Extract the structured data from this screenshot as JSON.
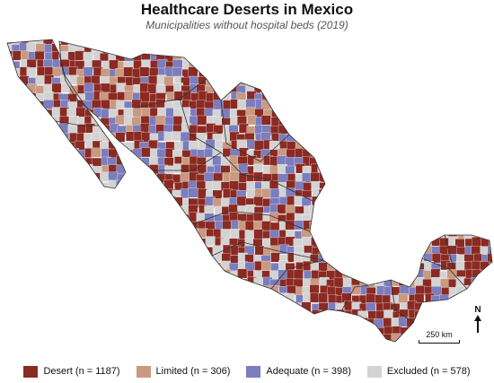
{
  "map": {
    "title": "Healthcare Deserts in Mexico",
    "subtitle": "Municipalities without hospital beds (2019)",
    "north_label": "N",
    "scale_label": "250 km",
    "categories": [
      {
        "key": "desert",
        "label": "Desert (n = 1187)",
        "color": "#8b2a22"
      },
      {
        "key": "limited",
        "label": "Limited (n = 306)",
        "color": "#c99a80"
      },
      {
        "key": "adequate",
        "label": "Adequate (n = 398)",
        "color": "#7b7dbd"
      },
      {
        "key": "excluded",
        "label": "Excluded (n = 578)",
        "color": "#d3d3d3"
      }
    ]
  }
}
